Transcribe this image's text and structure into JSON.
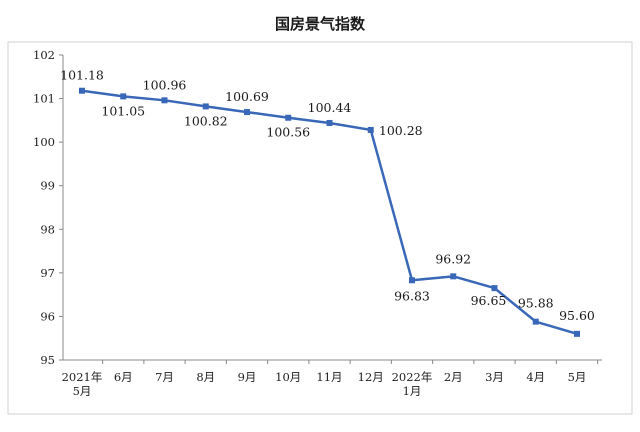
{
  "chart_data": {
    "type": "line",
    "title": "国房景气指数",
    "xlabel": "",
    "ylabel": "",
    "ylim": [
      95,
      102
    ],
    "yticks": [
      95,
      96,
      97,
      98,
      99,
      100,
      101,
      102
    ],
    "grid": false,
    "legend": "none",
    "line_color": "#3a68b8",
    "x": [
      [
        "2021年",
        "5月"
      ],
      [
        "6月"
      ],
      [
        "7月"
      ],
      [
        "8月"
      ],
      [
        "9月"
      ],
      [
        "10月"
      ],
      [
        "11月"
      ],
      [
        "12月"
      ],
      [
        "2022年",
        "1月"
      ],
      [
        "2月"
      ],
      [
        "3月"
      ],
      [
        "4月"
      ],
      [
        "5月"
      ]
    ],
    "values": [
      101.18,
      101.05,
      100.96,
      100.82,
      100.69,
      100.56,
      100.44,
      100.28,
      96.83,
      96.92,
      96.65,
      95.88,
      95.6
    ],
    "data_labels": [
      "101.18",
      "101.05",
      "100.96",
      "100.82",
      "100.69",
      "100.56",
      "100.44",
      "100.28",
      "96.83",
      "96.92",
      "96.65",
      "95.88",
      "95.60"
    ]
  }
}
